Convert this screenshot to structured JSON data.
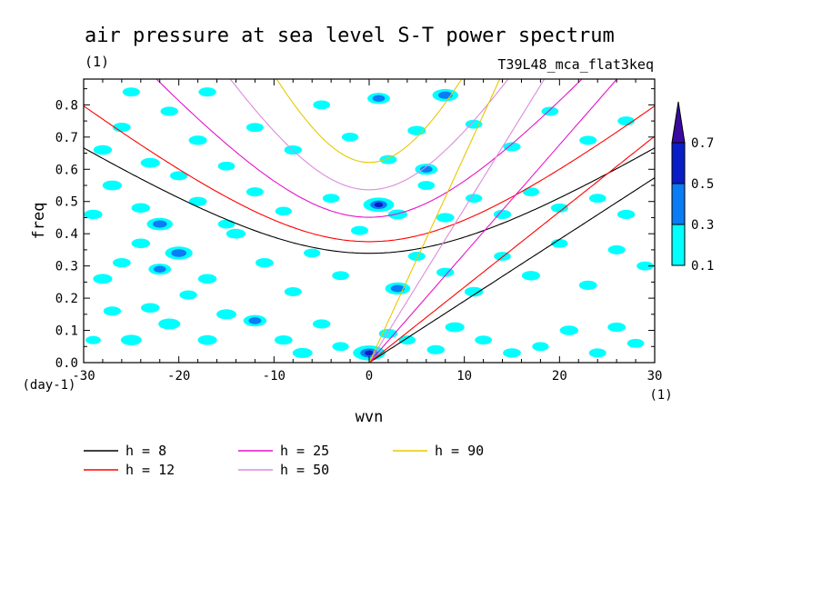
{
  "chart_data": {
    "type": "heatmap",
    "title": "air pressure at sea level S-T power spectrum",
    "subtitle_left": "(1)",
    "subtitle_right": "T39L48_mca_flat3keq",
    "xlabel": "wvn",
    "ylabel": "freq",
    "x_unit": "(1)",
    "y_unit": "(day-1)",
    "xlim": [
      -30,
      30
    ],
    "ylim": [
      0,
      0.88
    ],
    "x_ticks": [
      -30,
      -20,
      -10,
      0,
      10,
      20,
      30
    ],
    "y_ticks": [
      0.0,
      0.1,
      0.2,
      0.3,
      0.4,
      0.5,
      0.6,
      0.7,
      0.8
    ],
    "x_tick_labels": [
      "-30",
      "-20",
      "-10",
      "0",
      "10",
      "20",
      "30"
    ],
    "y_tick_labels": [
      "0.0",
      "0.1",
      "0.2",
      "0.3",
      "0.4",
      "0.5",
      "0.6",
      "0.7",
      "0.8"
    ],
    "colorbar": {
      "levels": [
        "0.1",
        "0.3",
        "0.5",
        "0.7"
      ],
      "colors": [
        "#00ffff",
        "#0a7cf4",
        "#0a1ec8",
        "#3a0aa0"
      ]
    },
    "series": [
      {
        "name": "h =  8",
        "color": "#000000",
        "equivalent_depth": 8
      },
      {
        "name": "h = 12",
        "color": "#ff0000",
        "equivalent_depth": 12
      },
      {
        "name": "h = 25",
        "color": "#e614c8",
        "equivalent_depth": 25
      },
      {
        "name": "h = 50",
        "color": "#dc8cdc",
        "equivalent_depth": 50
      },
      {
        "name": "h = 90",
        "color": "#e6c800",
        "equivalent_depth": 90
      }
    ],
    "blobs": [
      [
        -29,
        0.07,
        0.08
      ],
      [
        -27,
        0.16,
        0.15
      ],
      [
        -25,
        0.07,
        0.25
      ],
      [
        -23,
        0.17,
        0.18
      ],
      [
        -21,
        0.12,
        0.28
      ],
      [
        -19,
        0.21,
        0.15
      ],
      [
        -17,
        0.07,
        0.2
      ],
      [
        -15,
        0.15,
        0.22
      ],
      [
        -12,
        0.13,
        0.32
      ],
      [
        -9,
        0.07,
        0.16
      ],
      [
        -7,
        0.03,
        0.22
      ],
      [
        -5,
        0.12,
        0.15
      ],
      [
        -3,
        0.05,
        0.12
      ],
      [
        0,
        0.03,
        0.6
      ],
      [
        2,
        0.09,
        0.18
      ],
      [
        4,
        0.07,
        0.13
      ],
      [
        7,
        0.04,
        0.15
      ],
      [
        9,
        0.11,
        0.2
      ],
      [
        12,
        0.07,
        0.13
      ],
      [
        15,
        0.03,
        0.16
      ],
      [
        18,
        0.05,
        0.12
      ],
      [
        21,
        0.1,
        0.18
      ],
      [
        24,
        0.03,
        0.14
      ],
      [
        26,
        0.11,
        0.16
      ],
      [
        28,
        0.06,
        0.13
      ],
      [
        -28,
        0.26,
        0.2
      ],
      [
        -26,
        0.31,
        0.16
      ],
      [
        -24,
        0.37,
        0.18
      ],
      [
        -22,
        0.29,
        0.3
      ],
      [
        -20,
        0.34,
        0.45
      ],
      [
        -17,
        0.26,
        0.18
      ],
      [
        -14,
        0.4,
        0.2
      ],
      [
        -11,
        0.31,
        0.16
      ],
      [
        -8,
        0.22,
        0.14
      ],
      [
        -6,
        0.34,
        0.12
      ],
      [
        -3,
        0.27,
        0.13
      ],
      [
        -1,
        0.41,
        0.14
      ],
      [
        3,
        0.23,
        0.38
      ],
      [
        5,
        0.33,
        0.14
      ],
      [
        8,
        0.28,
        0.15
      ],
      [
        11,
        0.22,
        0.18
      ],
      [
        14,
        0.33,
        0.13
      ],
      [
        17,
        0.27,
        0.17
      ],
      [
        20,
        0.37,
        0.12
      ],
      [
        23,
        0.24,
        0.16
      ],
      [
        26,
        0.35,
        0.14
      ],
      [
        29,
        0.3,
        0.13
      ],
      [
        -29,
        0.46,
        0.17
      ],
      [
        -27,
        0.55,
        0.2
      ],
      [
        -24,
        0.48,
        0.18
      ],
      [
        -22,
        0.43,
        0.4
      ],
      [
        -20,
        0.58,
        0.15
      ],
      [
        -18,
        0.5,
        0.16
      ],
      [
        -15,
        0.43,
        0.13
      ],
      [
        -12,
        0.53,
        0.14
      ],
      [
        -9,
        0.47,
        0.12
      ],
      [
        -4,
        0.51,
        0.13
      ],
      [
        1,
        0.49,
        0.55
      ],
      [
        3,
        0.46,
        0.2
      ],
      [
        6,
        0.55,
        0.13
      ],
      [
        8,
        0.45,
        0.16
      ],
      [
        11,
        0.51,
        0.12
      ],
      [
        14,
        0.46,
        0.15
      ],
      [
        17,
        0.53,
        0.12
      ],
      [
        20,
        0.48,
        0.14
      ],
      [
        24,
        0.51,
        0.13
      ],
      [
        27,
        0.46,
        0.15
      ],
      [
        -28,
        0.66,
        0.18
      ],
      [
        -26,
        0.73,
        0.16
      ],
      [
        -23,
        0.62,
        0.2
      ],
      [
        -21,
        0.78,
        0.15
      ],
      [
        -18,
        0.69,
        0.17
      ],
      [
        -15,
        0.61,
        0.13
      ],
      [
        -12,
        0.73,
        0.14
      ],
      [
        -8,
        0.66,
        0.15
      ],
      [
        -5,
        0.8,
        0.13
      ],
      [
        -2,
        0.7,
        0.12
      ],
      [
        2,
        0.63,
        0.14
      ],
      [
        5,
        0.72,
        0.17
      ],
      [
        6,
        0.6,
        0.3
      ],
      [
        8,
        0.83,
        0.4
      ],
      [
        11,
        0.74,
        0.13
      ],
      [
        15,
        0.67,
        0.14
      ],
      [
        19,
        0.78,
        0.13
      ],
      [
        23,
        0.69,
        0.14
      ],
      [
        27,
        0.75,
        0.13
      ],
      [
        1,
        0.82,
        0.3
      ],
      [
        -17,
        0.84,
        0.15
      ],
      [
        -25,
        0.84,
        0.14
      ]
    ]
  },
  "legend": {
    "items": [
      {
        "label": "h =  8",
        "color": "#000000"
      },
      {
        "label": "h = 25",
        "color": "#e614c8"
      },
      {
        "label": "h = 90",
        "color": "#e6c800"
      },
      {
        "label": "h = 12",
        "color": "#ff0000"
      },
      {
        "label": "h = 50",
        "color": "#dc8cdc"
      }
    ]
  }
}
